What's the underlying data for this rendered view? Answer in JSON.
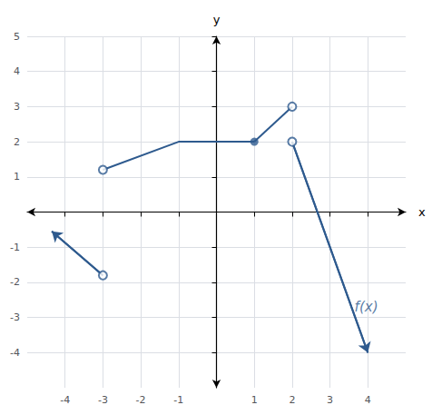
{
  "chart_data": {
    "type": "line",
    "xlabel": "x",
    "ylabel": "y",
    "xlim": [
      -5,
      5
    ],
    "ylim": [
      -5,
      5
    ],
    "xticks": [
      -4,
      -3,
      -2,
      -1,
      1,
      2,
      3,
      4
    ],
    "yticks": [
      -4,
      -3,
      -2,
      -1,
      1,
      2,
      3,
      4,
      5
    ],
    "grid": true,
    "series": [
      {
        "type": "line",
        "marker": "arrow",
        "color": "#2E5A8E",
        "x": [
          -3,
          -4.35
        ],
        "values": [
          -1.8,
          -0.55
        ]
      },
      {
        "type": "line",
        "marker": "none",
        "color": "#2E5A8E",
        "x": [
          -3,
          -1,
          1
        ],
        "values": [
          1.2,
          2.0,
          2.0
        ]
      },
      {
        "type": "line",
        "marker": "none",
        "color": "#2E5A8E",
        "x": [
          1,
          2
        ],
        "values": [
          2.0,
          3.0
        ]
      },
      {
        "type": "line",
        "marker": "arrow",
        "color": "#2E5A8E",
        "x": [
          2,
          4.0
        ],
        "values": [
          2.0,
          -4.0
        ]
      },
      {
        "type": "scatter",
        "marker": "open_circle",
        "color": "#2E5A8E",
        "x": [
          -3,
          -3,
          2,
          2
        ],
        "values": [
          -1.8,
          1.2,
          3.0,
          2.0
        ]
      },
      {
        "type": "scatter",
        "marker": "closed_circle",
        "color": "#2E5A8E",
        "x": [
          1
        ],
        "values": [
          2.0
        ]
      }
    ],
    "annotations": [
      {
        "text": "f(x)",
        "x": 3.6,
        "y": -2.7,
        "color": "#2E5A8E"
      }
    ]
  }
}
